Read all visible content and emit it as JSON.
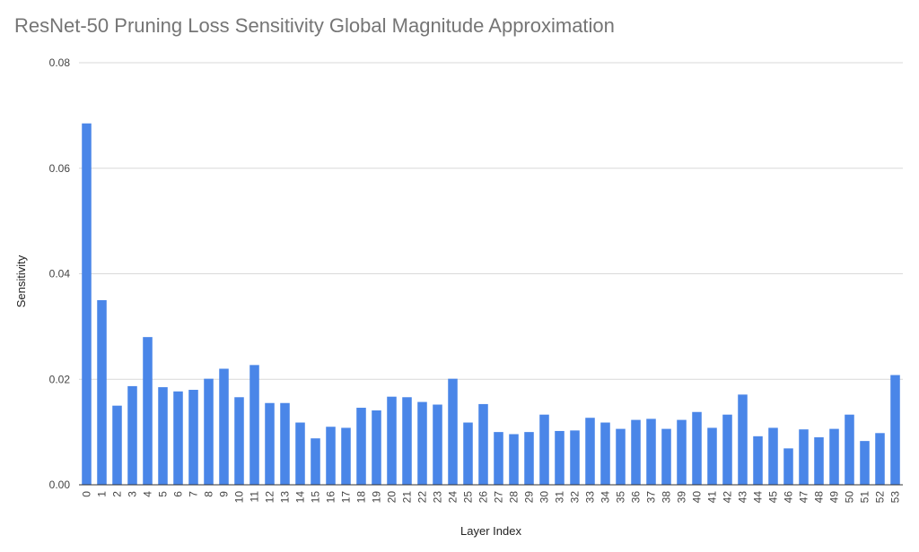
{
  "chart_data": {
    "type": "bar",
    "title": "ResNet-50 Pruning Loss Sensitivity Global Magnitude Approximation",
    "xlabel": "Layer Index",
    "ylabel": "Sensitivity",
    "ylim": [
      0,
      0.08
    ],
    "yticks": [
      "0.00",
      "0.02",
      "0.04",
      "0.06",
      "0.08"
    ],
    "grid": true,
    "legend": "none",
    "bar_color": "#4a86e8",
    "categories": [
      "0",
      "1",
      "2",
      "3",
      "4",
      "5",
      "6",
      "7",
      "8",
      "9",
      "10",
      "11",
      "12",
      "13",
      "14",
      "15",
      "16",
      "17",
      "18",
      "19",
      "20",
      "21",
      "22",
      "23",
      "24",
      "25",
      "26",
      "27",
      "28",
      "29",
      "30",
      "31",
      "32",
      "33",
      "34",
      "35",
      "36",
      "37",
      "38",
      "39",
      "40",
      "41",
      "42",
      "43",
      "44",
      "45",
      "46",
      "47",
      "48",
      "49",
      "50",
      "51",
      "52",
      "53"
    ],
    "values": [
      0.0685,
      0.035,
      0.015,
      0.0187,
      0.028,
      0.0185,
      0.0177,
      0.018,
      0.0201,
      0.022,
      0.0166,
      0.0227,
      0.0155,
      0.0155,
      0.0118,
      0.0088,
      0.011,
      0.0108,
      0.0146,
      0.0141,
      0.0167,
      0.0166,
      0.0157,
      0.0152,
      0.0201,
      0.0118,
      0.0153,
      0.01,
      0.0096,
      0.01,
      0.0133,
      0.0102,
      0.0103,
      0.0127,
      0.0118,
      0.0106,
      0.0123,
      0.0125,
      0.0106,
      0.0123,
      0.0138,
      0.0108,
      0.0133,
      0.0171,
      0.0092,
      0.0108,
      0.0069,
      0.0105,
      0.009,
      0.0106,
      0.0133,
      0.0083,
      0.0098,
      0.0208
    ]
  }
}
